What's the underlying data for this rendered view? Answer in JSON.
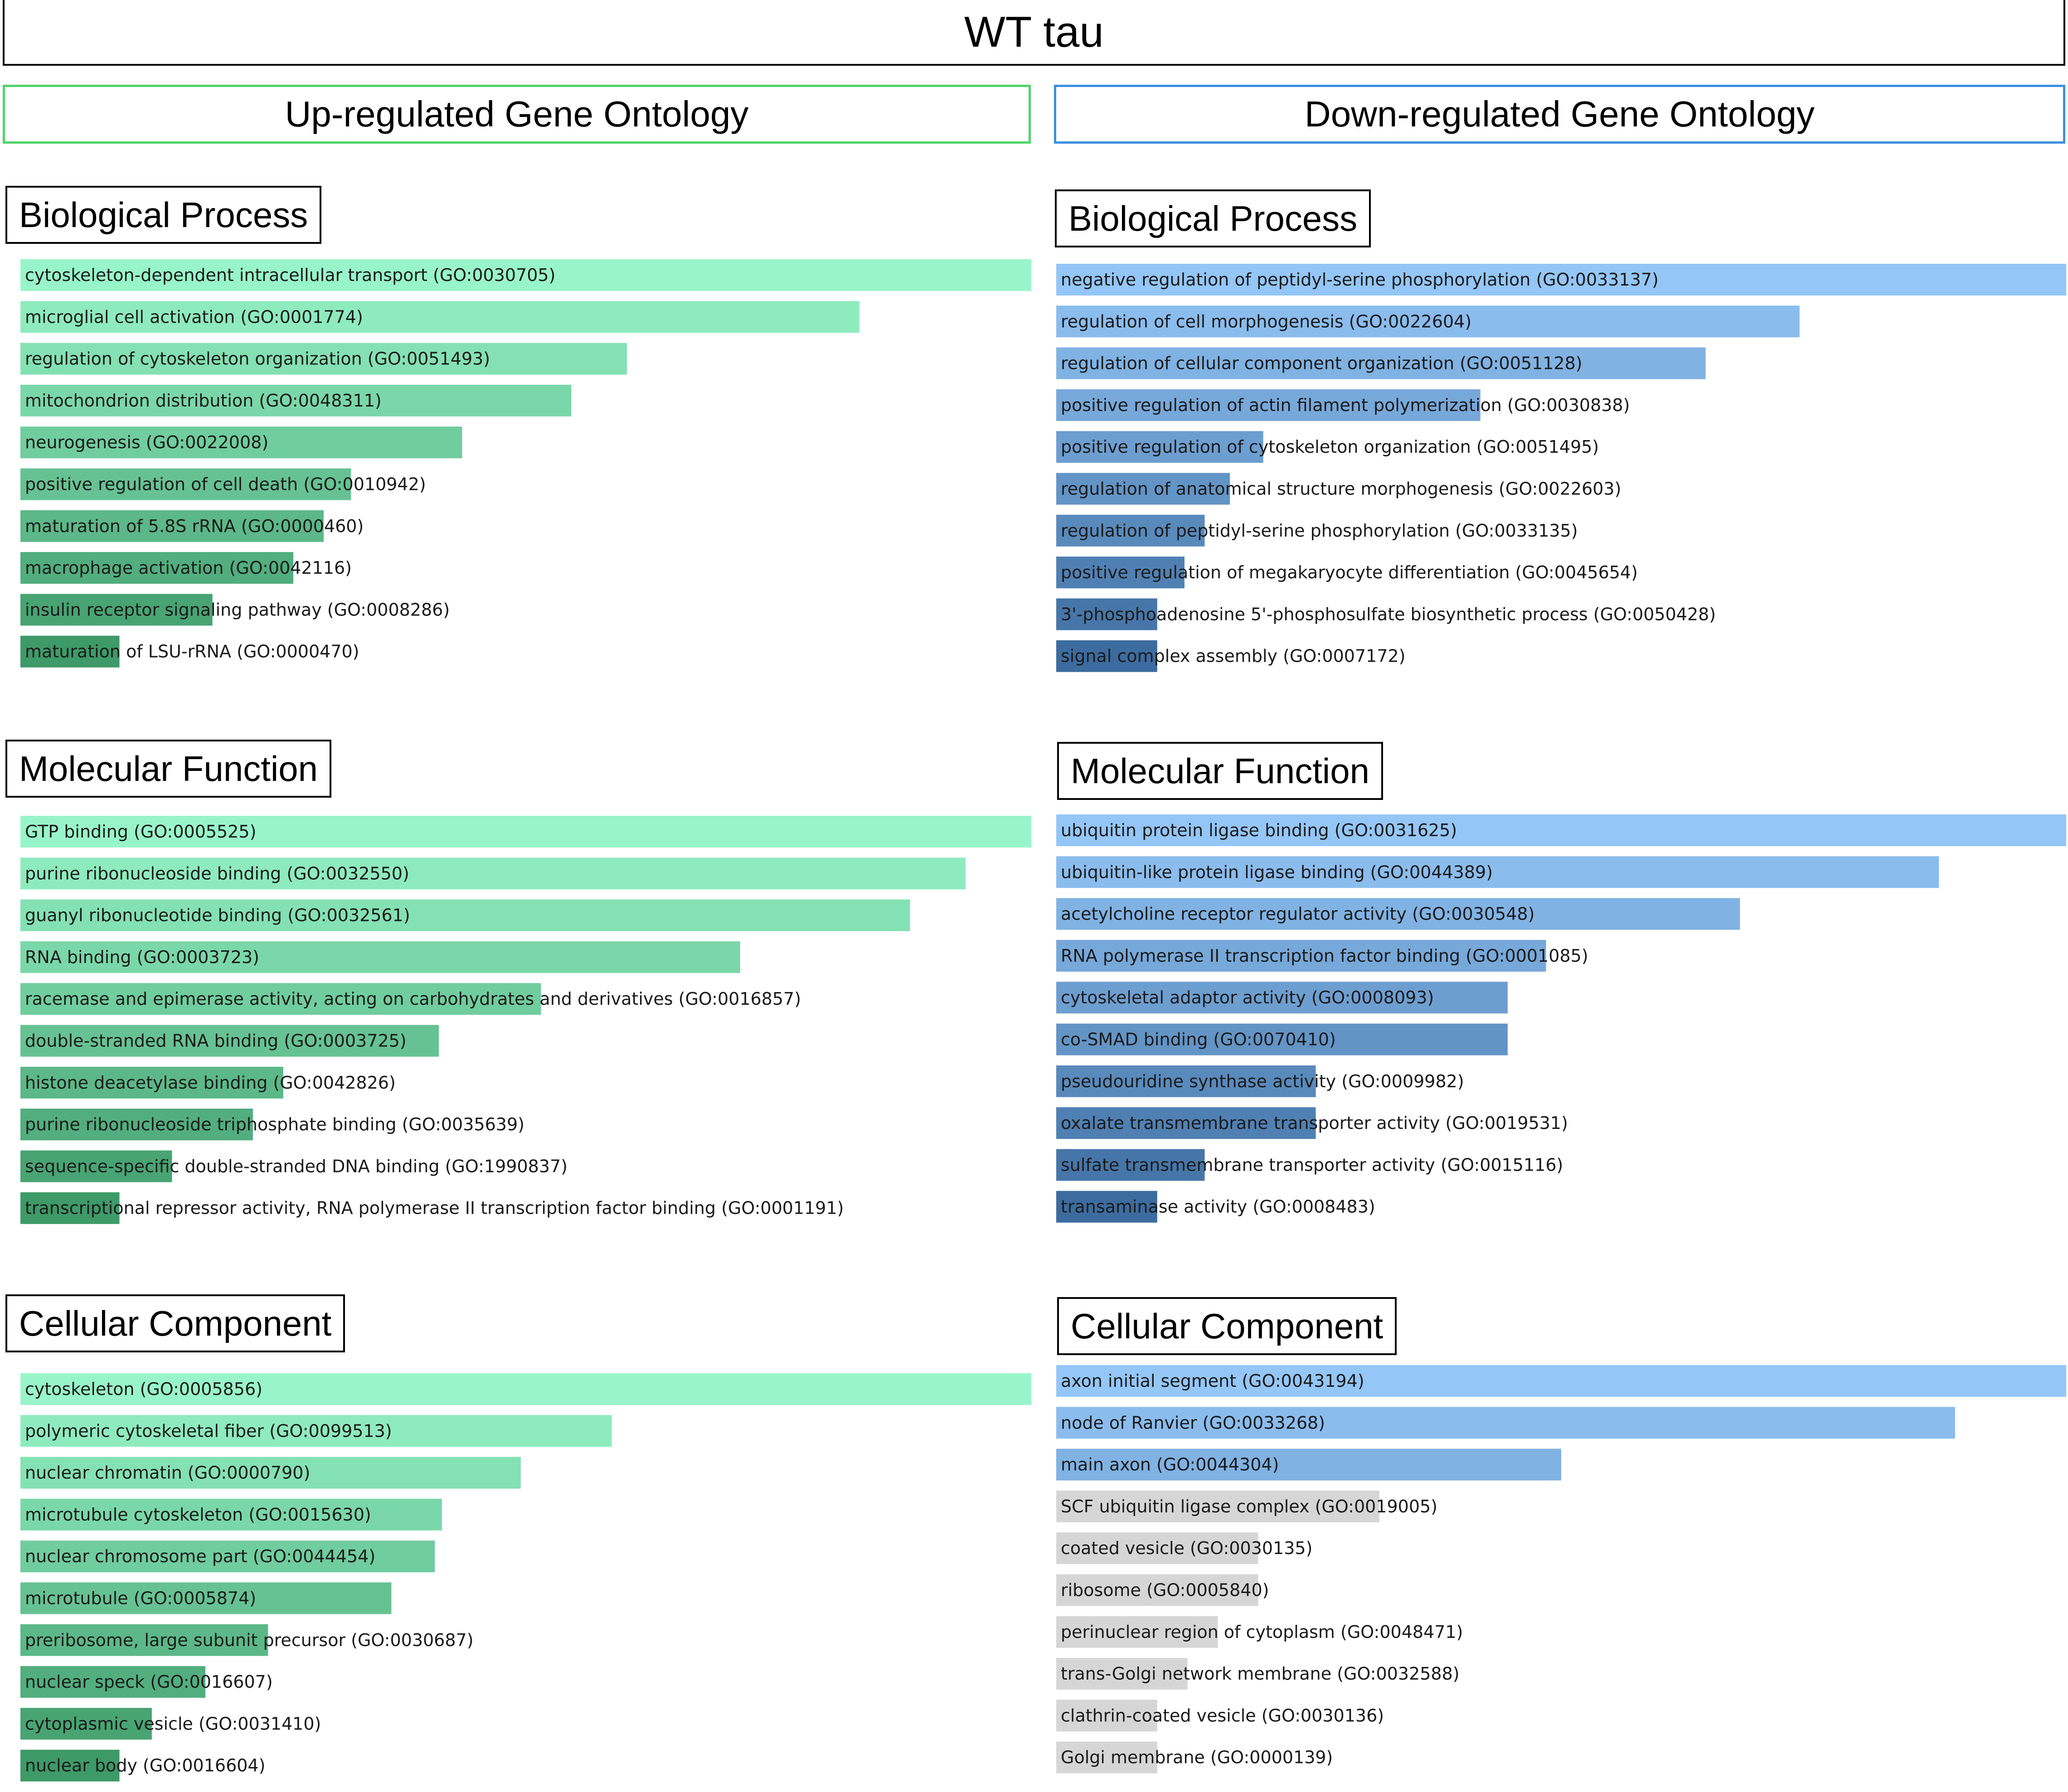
{
  "title": "WT tau",
  "columns": {
    "up": {
      "header": "Up-regulated Gene Ontology"
    },
    "down": {
      "header": "Down-regulated Gene Ontology"
    }
  },
  "sections": {
    "bp": "Biological Process",
    "mf": "Molecular Function",
    "cc": "Cellular Component"
  },
  "colors": {
    "up_light": "#98f5c9",
    "up_dark": "#3e9a68",
    "down_light": "#94c6f7",
    "down_dark": "#3c6c9f",
    "grey": "#d6d6d6",
    "text": "#1a1a1a"
  },
  "chart_data": [
    {
      "type": "bar",
      "orientation": "horizontal",
      "column": "up",
      "section": "Biological Process",
      "value_unit": "relative enrichment (fraction of top term)",
      "categories": [
        "cytoskeleton-dependent intracellular transport (GO:0030705)",
        "microglial cell activation (GO:0001774)",
        "regulation of cytoskeleton organization (GO:0051493)",
        "mitochondrion distribution (GO:0048311)",
        "neurogenesis (GO:0022008)",
        "positive regulation of cell death (GO:0010942)",
        "maturation of 5.8S rRNA (GO:0000460)",
        "macrophage activation (GO:0042116)",
        "insulin receptor signaling pathway (GO:0008286)",
        "maturation of LSU-rRNA (GO:0000470)"
      ],
      "values": [
        1.0,
        0.83,
        0.6,
        0.545,
        0.437,
        0.327,
        0.3,
        0.27,
        0.19,
        0.098
      ],
      "significant": [
        true,
        true,
        true,
        true,
        true,
        true,
        true,
        true,
        true,
        true
      ]
    },
    {
      "type": "bar",
      "orientation": "horizontal",
      "column": "up",
      "section": "Molecular Function",
      "value_unit": "relative enrichment (fraction of top term)",
      "categories": [
        "GTP binding (GO:0005525)",
        "purine ribonucleoside binding (GO:0032550)",
        "guanyl ribonucleotide binding (GO:0032561)",
        "RNA binding (GO:0003723)",
        "racemase and epimerase activity, acting on carbohydrates and derivatives (GO:0016857)",
        "double-stranded RNA binding (GO:0003725)",
        "histone deacetylase binding (GO:0042826)",
        "purine ribonucleoside triphosphate binding (GO:0035639)",
        "sequence-specific double-stranded DNA binding (GO:1990837)",
        "transcriptional repressor activity, RNA polymerase II transcription factor binding (GO:0001191)"
      ],
      "values": [
        1.0,
        0.935,
        0.88,
        0.712,
        0.515,
        0.414,
        0.26,
        0.23,
        0.15,
        0.098
      ],
      "significant": [
        true,
        true,
        true,
        true,
        true,
        true,
        true,
        true,
        true,
        true
      ]
    },
    {
      "type": "bar",
      "orientation": "horizontal",
      "column": "up",
      "section": "Cellular Component",
      "value_unit": "relative enrichment (fraction of top term)",
      "categories": [
        "cytoskeleton (GO:0005856)",
        "polymeric cytoskeletal fiber (GO:0099513)",
        "nuclear chromatin (GO:0000790)",
        "microtubule cytoskeleton (GO:0015630)",
        "nuclear chromosome part (GO:0044454)",
        "microtubule (GO:0005874)",
        "preribosome, large subunit precursor (GO:0030687)",
        "nuclear speck (GO:0016607)",
        "cytoplasmic vesicle (GO:0031410)",
        "nuclear body (GO:0016604)"
      ],
      "values": [
        1.0,
        0.585,
        0.495,
        0.417,
        0.41,
        0.367,
        0.245,
        0.183,
        0.13,
        0.098
      ],
      "significant": [
        true,
        true,
        true,
        true,
        true,
        true,
        true,
        true,
        true,
        true
      ]
    },
    {
      "type": "bar",
      "orientation": "horizontal",
      "column": "down",
      "section": "Biological Process",
      "value_unit": "relative enrichment (fraction of top term)",
      "categories": [
        "negative regulation of peptidyl-serine phosphorylation (GO:0033137)",
        "regulation of cell morphogenesis (GO:0022604)",
        "regulation of cellular component organization (GO:0051128)",
        "positive regulation of actin filament polymerization (GO:0030838)",
        "positive regulation of cytoskeleton organization (GO:0051495)",
        "regulation of anatomical structure morphogenesis (GO:0022603)",
        "regulation of peptidyl-serine phosphorylation (GO:0033135)",
        "positive regulation of megakaryocyte differentiation (GO:0045654)",
        "3'-phosphoadenosine 5'-phosphosulfate biosynthetic process (GO:0050428)",
        "signal complex assembly (GO:0007172)"
      ],
      "values": [
        1.0,
        0.736,
        0.643,
        0.42,
        0.205,
        0.172,
        0.147,
        0.127,
        0.1,
        0.1
      ],
      "significant": [
        true,
        true,
        true,
        true,
        true,
        true,
        true,
        true,
        true,
        true
      ]
    },
    {
      "type": "bar",
      "orientation": "horizontal",
      "column": "down",
      "section": "Molecular Function",
      "value_unit": "relative enrichment (fraction of top term)",
      "categories": [
        "ubiquitin protein ligase binding (GO:0031625)",
        "ubiquitin-like protein ligase binding (GO:0044389)",
        "acetylcholine receptor regulator activity (GO:0030548)",
        "RNA polymerase II transcription factor binding (GO:0001085)",
        "cytoskeletal adaptor activity (GO:0008093)",
        "co-SMAD binding (GO:0070410)",
        "pseudouridine synthase activity (GO:0009982)",
        "oxalate transmembrane transporter activity (GO:0019531)",
        "sulfate transmembrane transporter activity (GO:0015116)",
        "transaminase activity (GO:0008483)"
      ],
      "values": [
        1.0,
        0.874,
        0.677,
        0.485,
        0.447,
        0.447,
        0.257,
        0.257,
        0.147,
        0.1
      ],
      "significant": [
        true,
        true,
        true,
        true,
        true,
        true,
        true,
        true,
        true,
        true
      ]
    },
    {
      "type": "bar",
      "orientation": "horizontal",
      "column": "down",
      "section": "Cellular Component",
      "value_unit": "relative enrichment (fraction of top term)",
      "categories": [
        "axon initial segment (GO:0043194)",
        "node of Ranvier (GO:0033268)",
        "main axon (GO:0044304)",
        "SCF ubiquitin ligase complex (GO:0019005)",
        "coated vesicle (GO:0030135)",
        "ribosome (GO:0005840)",
        "perinuclear region of cytoplasm (GO:0048471)",
        "trans-Golgi network membrane (GO:0032588)",
        "clathrin-coated vesicle (GO:0030136)",
        "Golgi membrane (GO:0000139)"
      ],
      "values": [
        1.0,
        0.89,
        0.5,
        0.32,
        0.2,
        0.2,
        0.16,
        0.13,
        0.1,
        0.1
      ],
      "significant": [
        true,
        true,
        true,
        false,
        false,
        false,
        false,
        false,
        false,
        false
      ]
    }
  ]
}
